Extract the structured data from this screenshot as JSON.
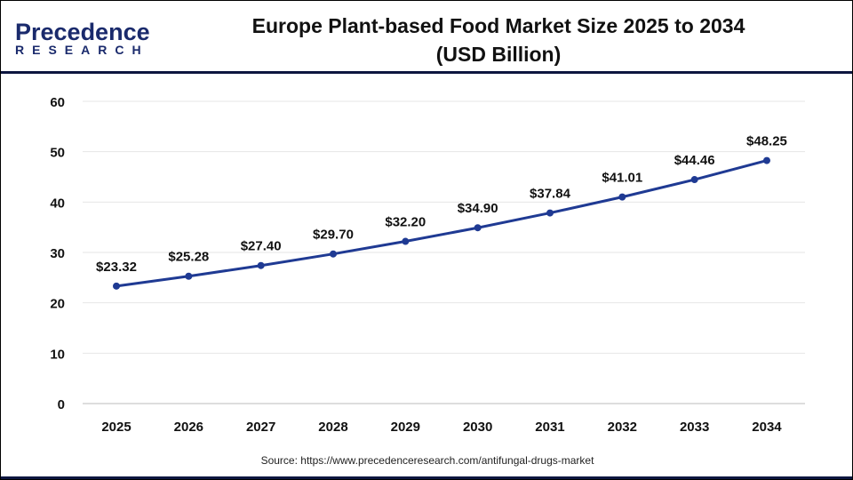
{
  "logo": {
    "line1": "Precedence",
    "line2": "RESEARCH"
  },
  "title_line1": "Europe Plant-based Food Market Size 2025 to 2034",
  "title_line2": "(USD Billion)",
  "source": "Source: https://www.precedenceresearch.com/antifungal-drugs-market",
  "chart_data": {
    "type": "line",
    "title": "Europe Plant-based Food Market Size 2025 to 2034 (USD Billion)",
    "categories": [
      "2025",
      "2026",
      "2027",
      "2028",
      "2029",
      "2030",
      "2031",
      "2032",
      "2033",
      "2034"
    ],
    "values": [
      23.32,
      25.28,
      27.4,
      29.7,
      32.2,
      34.9,
      37.84,
      41.01,
      44.46,
      48.25
    ],
    "data_labels": [
      "$23.32",
      "$25.28",
      "$27.40",
      "$29.70",
      "$32.20",
      "$34.90",
      "$37.84",
      "$41.01",
      "$44.46",
      "$48.25"
    ],
    "yticks": [
      0,
      10,
      20,
      30,
      40,
      50,
      60
    ],
    "ylim": [
      0,
      60
    ],
    "grid": true,
    "line_color": "#1f3a93"
  }
}
